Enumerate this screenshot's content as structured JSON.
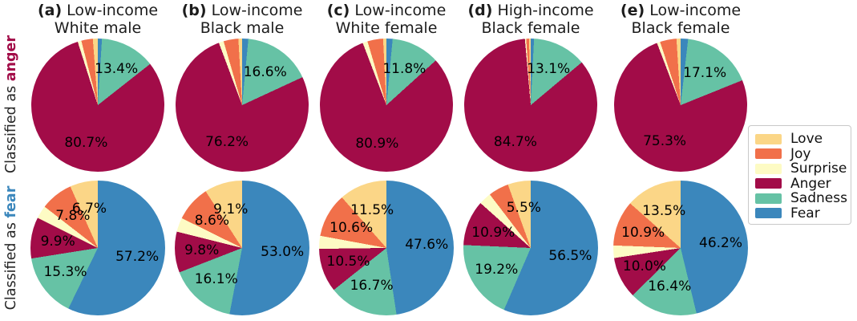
{
  "figure": {
    "row_labels": [
      {
        "prefix": "Classified as ",
        "emotion": "anger",
        "color": "#a20c48"
      },
      {
        "prefix": "Classified as ",
        "emotion": "fear",
        "color": "#3b87bc"
      }
    ],
    "legend": {
      "items": [
        {
          "label": "Love",
          "color": "#fbd687"
        },
        {
          "label": "Joy",
          "color": "#f1704a"
        },
        {
          "label": "Surprise",
          "color": "#fdfbc4"
        },
        {
          "label": "Anger",
          "color": "#a20c48"
        },
        {
          "label": "Sadness",
          "color": "#66c2a5"
        },
        {
          "label": "Fear",
          "color": "#3b87bc"
        }
      ]
    }
  },
  "chart_data": {
    "type": "pie",
    "layout": "2 rows (classified as anger / classified as fear) x 5 demographic columns, slices counterclockwise from 12 o'clock in order Love, Joy, Surprise, Anger, Sadness, Fear",
    "emotions": [
      "Love",
      "Joy",
      "Surprise",
      "Anger",
      "Sadness",
      "Fear"
    ],
    "colors": {
      "Love": "#fbd687",
      "Joy": "#f1704a",
      "Surprise": "#fdfbc4",
      "Anger": "#a20c48",
      "Sadness": "#66c2a5",
      "Fear": "#3b87bc"
    },
    "columns": [
      {
        "tag": "(a)",
        "title_line1": "Low-income",
        "title_line2": "White male"
      },
      {
        "tag": "(b)",
        "title_line1": "Low-income",
        "title_line2": "Black male"
      },
      {
        "tag": "(c)",
        "title_line1": "Low-income",
        "title_line2": "White female"
      },
      {
        "tag": "(d)",
        "title_line1": "High-income",
        "title_line2": "Black female"
      },
      {
        "tag": "(e)",
        "title_line1": "Low-income",
        "title_line2": "Black female"
      }
    ],
    "rows": [
      "Classified as anger",
      "Classified as fear"
    ],
    "note": "slices without a printed percentage in the figure have label_text null; their values are estimated from arc angles so each pie sums to 100",
    "pies": [
      [
        {
          "id": "anger-a",
          "slices": [
            {
              "emotion": "Love",
              "value": 1.2,
              "label_text": null
            },
            {
              "emotion": "Joy",
              "value": 2.8,
              "label_text": null
            },
            {
              "emotion": "Surprise",
              "value": 0.9,
              "label_text": null
            },
            {
              "emotion": "Anger",
              "value": 80.7,
              "label_text": "80.7%"
            },
            {
              "emotion": "Sadness",
              "value": 13.4,
              "label_text": "13.4%"
            },
            {
              "emotion": "Fear",
              "value": 1.0,
              "label_text": null
            }
          ]
        },
        {
          "id": "anger-b",
          "slices": [
            {
              "emotion": "Love",
              "value": 0.9,
              "label_text": null
            },
            {
              "emotion": "Joy",
              "value": 3.6,
              "label_text": null
            },
            {
              "emotion": "Surprise",
              "value": 1.2,
              "label_text": null
            },
            {
              "emotion": "Anger",
              "value": 76.2,
              "label_text": "76.2%"
            },
            {
              "emotion": "Sadness",
              "value": 16.6,
              "label_text": "16.6%"
            },
            {
              "emotion": "Fear",
              "value": 1.5,
              "label_text": null
            }
          ]
        },
        {
          "id": "anger-c",
          "slices": [
            {
              "emotion": "Love",
              "value": 0.8,
              "label_text": null
            },
            {
              "emotion": "Joy",
              "value": 3.8,
              "label_text": null
            },
            {
              "emotion": "Surprise",
              "value": 1.2,
              "label_text": null
            },
            {
              "emotion": "Anger",
              "value": 80.9,
              "label_text": "80.9%"
            },
            {
              "emotion": "Sadness",
              "value": 11.8,
              "label_text": "11.8%"
            },
            {
              "emotion": "Fear",
              "value": 1.5,
              "label_text": null
            }
          ]
        },
        {
          "id": "anger-d",
          "slices": [
            {
              "emotion": "Love",
              "value": 0.4,
              "label_text": null
            },
            {
              "emotion": "Joy",
              "value": 0.7,
              "label_text": null
            },
            {
              "emotion": "Surprise",
              "value": 0.3,
              "label_text": null
            },
            {
              "emotion": "Anger",
              "value": 84.7,
              "label_text": "84.7%"
            },
            {
              "emotion": "Sadness",
              "value": 13.1,
              "label_text": "13.1%"
            },
            {
              "emotion": "Fear",
              "value": 0.8,
              "label_text": null
            }
          ]
        },
        {
          "id": "anger-e",
          "slices": [
            {
              "emotion": "Love",
              "value": 1.0,
              "label_text": null
            },
            {
              "emotion": "Joy",
              "value": 4.0,
              "label_text": null
            },
            {
              "emotion": "Surprise",
              "value": 0.8,
              "label_text": null
            },
            {
              "emotion": "Anger",
              "value": 75.3,
              "label_text": "75.3%"
            },
            {
              "emotion": "Sadness",
              "value": 17.1,
              "label_text": "17.1%"
            },
            {
              "emotion": "Fear",
              "value": 1.8,
              "label_text": null
            }
          ]
        }
      ],
      [
        {
          "id": "fear-a",
          "slices": [
            {
              "emotion": "Love",
              "value": 6.7,
              "label_text": "6.7%"
            },
            {
              "emotion": "Joy",
              "value": 7.8,
              "label_text": "7.8%"
            },
            {
              "emotion": "Surprise",
              "value": 3.1,
              "label_text": null
            },
            {
              "emotion": "Anger",
              "value": 9.9,
              "label_text": "9.9%"
            },
            {
              "emotion": "Sadness",
              "value": 15.3,
              "label_text": "15.3%"
            },
            {
              "emotion": "Fear",
              "value": 57.2,
              "label_text": "57.2%"
            }
          ]
        },
        {
          "id": "fear-b",
          "slices": [
            {
              "emotion": "Love",
              "value": 9.1,
              "label_text": "9.1%"
            },
            {
              "emotion": "Joy",
              "value": 8.6,
              "label_text": "8.6%"
            },
            {
              "emotion": "Surprise",
              "value": 3.4,
              "label_text": null
            },
            {
              "emotion": "Anger",
              "value": 9.8,
              "label_text": "9.8%"
            },
            {
              "emotion": "Sadness",
              "value": 16.1,
              "label_text": "16.1%"
            },
            {
              "emotion": "Fear",
              "value": 53.0,
              "label_text": "53.0%"
            }
          ]
        },
        {
          "id": "fear-c",
          "slices": [
            {
              "emotion": "Love",
              "value": 11.5,
              "label_text": "11.5%"
            },
            {
              "emotion": "Joy",
              "value": 10.6,
              "label_text": "10.6%"
            },
            {
              "emotion": "Surprise",
              "value": 3.1,
              "label_text": null
            },
            {
              "emotion": "Anger",
              "value": 10.5,
              "label_text": "10.5%"
            },
            {
              "emotion": "Sadness",
              "value": 16.7,
              "label_text": "16.7%"
            },
            {
              "emotion": "Fear",
              "value": 47.6,
              "label_text": "47.6%"
            }
          ]
        },
        {
          "id": "fear-d",
          "slices": [
            {
              "emotion": "Love",
              "value": 5.5,
              "label_text": "5.5%"
            },
            {
              "emotion": "Joy",
              "value": 4.9,
              "label_text": null
            },
            {
              "emotion": "Surprise",
              "value": 3.0,
              "label_text": null
            },
            {
              "emotion": "Anger",
              "value": 10.9,
              "label_text": "10.9%"
            },
            {
              "emotion": "Sadness",
              "value": 19.2,
              "label_text": "19.2%"
            },
            {
              "emotion": "Fear",
              "value": 56.5,
              "label_text": "56.5%"
            }
          ]
        },
        {
          "id": "fear-e",
          "slices": [
            {
              "emotion": "Love",
              "value": 13.5,
              "label_text": "13.5%"
            },
            {
              "emotion": "Joy",
              "value": 10.9,
              "label_text": "10.9%"
            },
            {
              "emotion": "Surprise",
              "value": 3.0,
              "label_text": null
            },
            {
              "emotion": "Anger",
              "value": 10.0,
              "label_text": "10.0%"
            },
            {
              "emotion": "Sadness",
              "value": 16.4,
              "label_text": "16.4%"
            },
            {
              "emotion": "Fear",
              "value": 46.2,
              "label_text": "46.2%"
            }
          ]
        }
      ]
    ]
  }
}
